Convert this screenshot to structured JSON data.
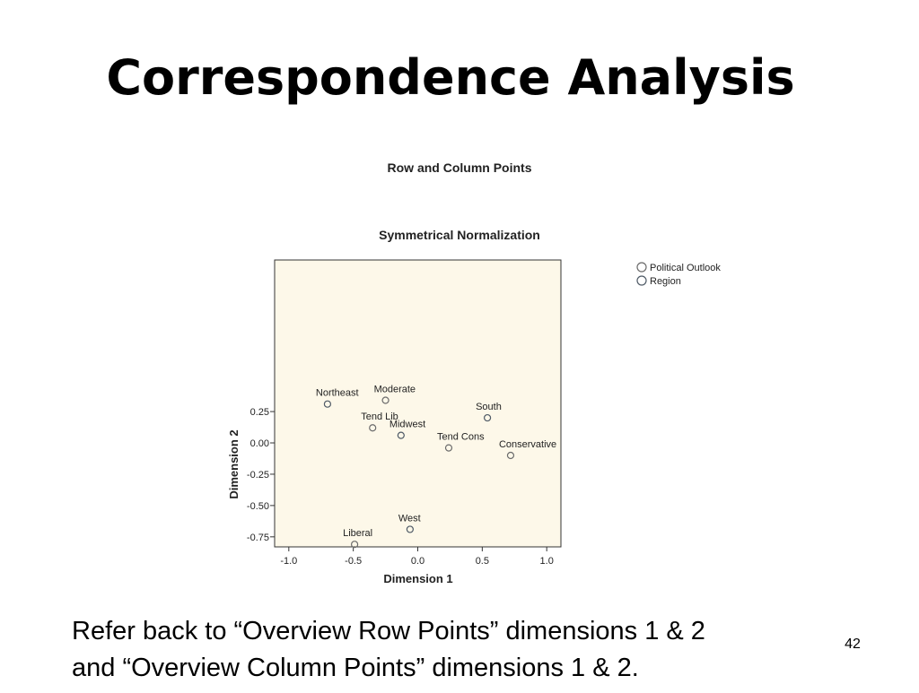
{
  "slide": {
    "title": "Correspondence Analysis",
    "footer_lines": [
      "Refer back to “Overview Row Points” dimensions 1 & 2",
      "and “Overview Column Points” dimensions 1 & 2."
    ],
    "page_number": "42"
  },
  "chart_data": {
    "type": "scatter",
    "title": "Row and Column Points",
    "subtitle": "Symmetrical Normalization",
    "x_label": "Dimension 1",
    "y_label": "Dimension 2",
    "xlim": [
      -1.11,
      1.11
    ],
    "ylim": [
      -0.83,
      1.46
    ],
    "xticks": [
      {
        "value": -1,
        "label": "-1.0"
      },
      -0.5,
      {
        "value": 0,
        "label": "0.0"
      },
      0.5,
      {
        "value": 1,
        "label": "1.0"
      }
    ],
    "yticks": [
      -0.75,
      {
        "value": -0.5,
        "label": "-0.50"
      },
      -0.25,
      {
        "value": 0,
        "label": "0.00"
      },
      0.25
    ],
    "series": [
      {
        "name": "Political Outlook",
        "color": "#6b6b6b",
        "labels": [
          "Moderate",
          "Tend Lib",
          "Tend Cons",
          "Conservative",
          "Liberal"
        ],
        "x": [
          -0.25,
          -0.35,
          0.24,
          0.72,
          -0.49
        ],
        "values": [
          0.34,
          0.12,
          -0.04,
          -0.1,
          -0.81
        ]
      },
      {
        "name": "Region",
        "color": "#4f5a66",
        "labels": [
          "Northeast",
          "Midwest",
          "South",
          "West"
        ],
        "x": [
          -0.7,
          -0.13,
          0.54,
          -0.06
        ],
        "values": [
          0.31,
          0.06,
          0.2,
          -0.69
        ]
      }
    ]
  }
}
